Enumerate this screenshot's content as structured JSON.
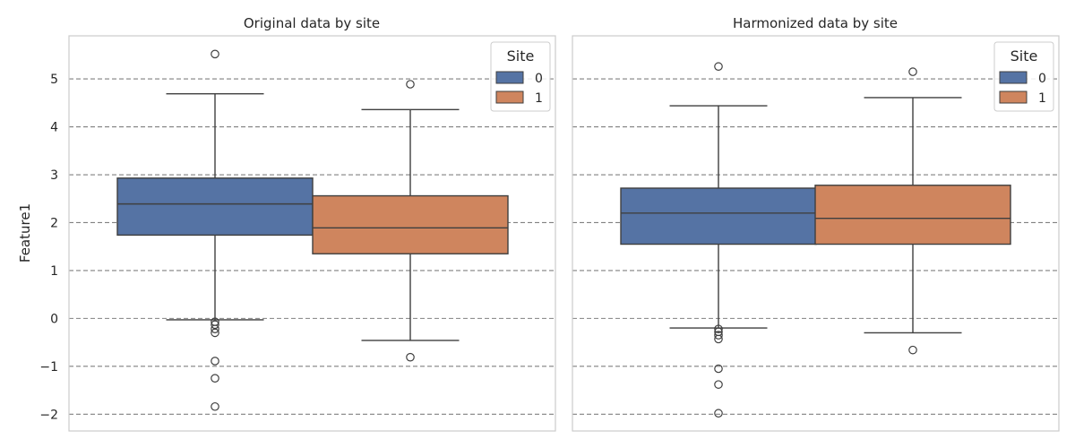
{
  "colors": {
    "site0": "#5573a4",
    "site1": "#cf855e"
  },
  "chart_data": [
    {
      "type": "box",
      "title": "Original data by site",
      "ylabel": "Feature1",
      "ylim": [
        -2.35,
        5.9
      ],
      "yticks": [
        -2,
        -1,
        0,
        1,
        2,
        3,
        4,
        5
      ],
      "ytick_labels": [
        "−2",
        "−1",
        "0",
        "1",
        "2",
        "3",
        "4",
        "5"
      ],
      "grid": true,
      "legend": {
        "title": "Site",
        "placement": "top-right",
        "entries": [
          "0",
          "1"
        ]
      },
      "series": [
        {
          "name": "0",
          "q1": 1.74,
          "median": 2.39,
          "q3": 2.93,
          "whisker_low": -0.03,
          "whisker_high": 4.69,
          "fliers": [
            5.52,
            -0.07,
            -0.13,
            -0.22,
            -0.3,
            -0.89,
            -1.25,
            -1.84
          ]
        },
        {
          "name": "1",
          "q1": 1.35,
          "median": 1.89,
          "q3": 2.56,
          "whisker_low": -0.46,
          "whisker_high": 4.36,
          "fliers": [
            4.89,
            -0.81
          ]
        }
      ]
    },
    {
      "type": "box",
      "title": "Harmonized data by site",
      "ylabel": "",
      "ylim": [
        -2.35,
        5.9
      ],
      "yticks": [
        -2,
        -1,
        0,
        1,
        2,
        3,
        4,
        5
      ],
      "grid": true,
      "legend": {
        "title": "Site",
        "placement": "top-right",
        "entries": [
          "0",
          "1"
        ]
      },
      "series": [
        {
          "name": "0",
          "q1": 1.55,
          "median": 2.2,
          "q3": 2.72,
          "whisker_low": -0.2,
          "whisker_high": 4.44,
          "fliers": [
            5.26,
            -0.22,
            -0.28,
            -0.35,
            -0.43,
            -1.05,
            -1.38,
            -1.98
          ]
        },
        {
          "name": "1",
          "q1": 1.55,
          "median": 2.09,
          "q3": 2.78,
          "whisker_low": -0.3,
          "whisker_high": 4.61,
          "fliers": [
            5.15,
            -0.66
          ]
        }
      ]
    }
  ]
}
